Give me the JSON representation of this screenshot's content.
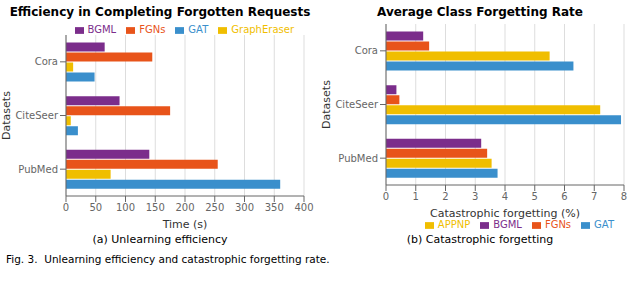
{
  "chart_data": [
    {
      "type": "bar",
      "orientation": "horizontal",
      "title": "Efficiency in Completing Forgotten Requests",
      "xlabel": "Time (s)",
      "ylabel": "Datasets",
      "categories": [
        "PubMed",
        "CiteSeer",
        "Cora"
      ],
      "series": [
        {
          "name": "BGML",
          "color": "#7B2D8B",
          "values": [
            140,
            90,
            65
          ]
        },
        {
          "name": "FGNs",
          "color": "#E8541A",
          "values": [
            255,
            175,
            145
          ]
        },
        {
          "name": "GraphEraser",
          "color": "#F0BE00",
          "values": [
            75,
            8,
            12
          ]
        },
        {
          "name": "GAT",
          "color": "#3A8FCC",
          "values": [
            360,
            20,
            48
          ]
        }
      ],
      "xlim": [
        0,
        400
      ],
      "xticks": [
        0,
        50,
        100,
        150,
        200,
        250,
        300,
        350,
        400
      ],
      "grid": true,
      "legend": "upper right",
      "annotations": [
        "(a) Unlearning efficiency"
      ]
    },
    {
      "type": "bar",
      "orientation": "horizontal",
      "title": "Average Class Forgetting Rate",
      "xlabel": "Catastrophic forgetting (%)",
      "ylabel": "Datasets",
      "categories": [
        "PubMed",
        "CiteSeer",
        "Cora"
      ],
      "series": [
        {
          "name": "BGML",
          "color": "#7B2D8B",
          "values": [
            3.2,
            0.35,
            1.25
          ]
        },
        {
          "name": "FGNs",
          "color": "#E8541A",
          "values": [
            3.4,
            0.45,
            1.45
          ]
        },
        {
          "name": "APPNP",
          "color": "#F0BE00",
          "values": [
            3.55,
            7.2,
            5.5
          ]
        },
        {
          "name": "GAT",
          "color": "#3A8FCC",
          "values": [
            3.75,
            7.9,
            6.3
          ]
        }
      ],
      "xlim": [
        0,
        8
      ],
      "xticks": [
        0,
        1,
        2,
        3,
        4,
        5,
        6,
        7,
        8
      ],
      "grid": true,
      "legend": "lower right",
      "annotations": [
        "(b) Catastrophic forgetting"
      ]
    }
  ],
  "annotations": [
    "Fig. 3.  Unlearning efficiency and catastrophic forgetting rate."
  ]
}
